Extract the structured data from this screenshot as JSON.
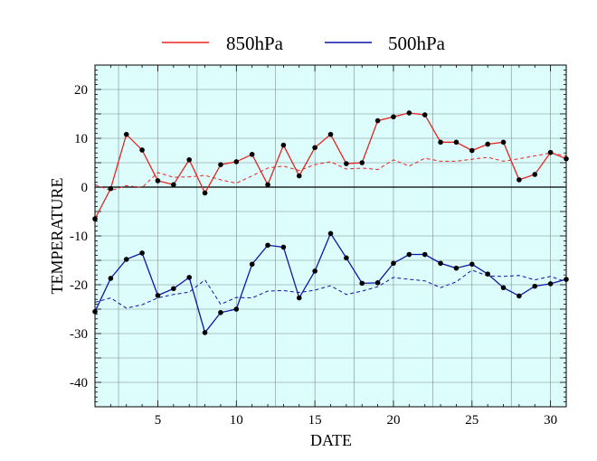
{
  "chart_data": {
    "type": "line",
    "title": "",
    "xlabel": "DATE",
    "ylabel": "TEMPERATURE",
    "xlim": [
      1,
      31
    ],
    "ylim": [
      -45,
      25
    ],
    "x_ticks": [
      5,
      10,
      15,
      20,
      25,
      30
    ],
    "y_ticks": [
      20,
      10,
      0,
      -10,
      -20,
      -30,
      -40
    ],
    "grid": true,
    "background": "#ddfdfd",
    "legend_position": "top",
    "legend": [
      {
        "name": "850hPa",
        "color": "#e8231f"
      },
      {
        "name": "500hPa",
        "color": "#0f14a3"
      }
    ],
    "x": [
      1,
      2,
      3,
      4,
      5,
      6,
      7,
      8,
      9,
      10,
      11,
      12,
      13,
      14,
      15,
      16,
      17,
      18,
      19,
      20,
      21,
      22,
      23,
      24,
      25,
      26,
      27,
      28,
      29,
      30,
      31
    ],
    "series": [
      {
        "name": "850hPa",
        "color": "#e8231f",
        "style": "solid",
        "markers": true,
        "values": [
          -6.5,
          -0.3,
          10.8,
          7.6,
          1.3,
          0.5,
          5.6,
          -1.2,
          4.6,
          5.2,
          6.7,
          0.5,
          8.6,
          2.3,
          8.1,
          10.8,
          4.8,
          5.0,
          13.6,
          14.4,
          15.2,
          14.8,
          9.2,
          9.2,
          7.5,
          8.8,
          9.2,
          1.5,
          2.6,
          7.1,
          5.8
        ]
      },
      {
        "name": "850hPa normal",
        "color": "#e8231f",
        "style": "dashed",
        "markers": false,
        "values": [
          0.5,
          -0.7,
          0.3,
          -0.1,
          3.0,
          2.0,
          2.1,
          2.4,
          1.5,
          0.8,
          2.3,
          3.9,
          4.3,
          3.4,
          4.6,
          5.2,
          3.7,
          3.9,
          3.6,
          5.6,
          4.3,
          5.9,
          5.3,
          5.3,
          5.7,
          6.1,
          5.3,
          5.8,
          6.4,
          7.0,
          6.4
        ]
      },
      {
        "name": "500hPa",
        "color": "#0f14a3",
        "style": "solid",
        "markers": true,
        "values": [
          -25.5,
          -18.7,
          -14.8,
          -13.5,
          -22.2,
          -20.8,
          -18.5,
          -29.8,
          -25.7,
          -25.0,
          -15.8,
          -11.9,
          -12.3,
          -22.7,
          -17.2,
          -9.5,
          -14.5,
          -19.7,
          -19.6,
          -15.6,
          -13.8,
          -13.8,
          -15.6,
          -16.6,
          -15.8,
          -17.8,
          -20.6,
          -22.3,
          -20.3,
          -19.8,
          -18.9
        ]
      },
      {
        "name": "500hPa normal",
        "color": "#0f14a3",
        "style": "dashed",
        "markers": false,
        "values": [
          -23.6,
          -22.7,
          -24.8,
          -24.1,
          -22.7,
          -22.0,
          -21.5,
          -19.0,
          -24.0,
          -22.6,
          -22.7,
          -21.3,
          -21.2,
          -21.6,
          -21.1,
          -20.2,
          -22.0,
          -21.3,
          -20.4,
          -18.5,
          -18.9,
          -19.2,
          -20.6,
          -19.4,
          -17.0,
          -18.2,
          -18.3,
          -18.1,
          -19.0,
          -18.3,
          -19.4
        ]
      }
    ]
  }
}
